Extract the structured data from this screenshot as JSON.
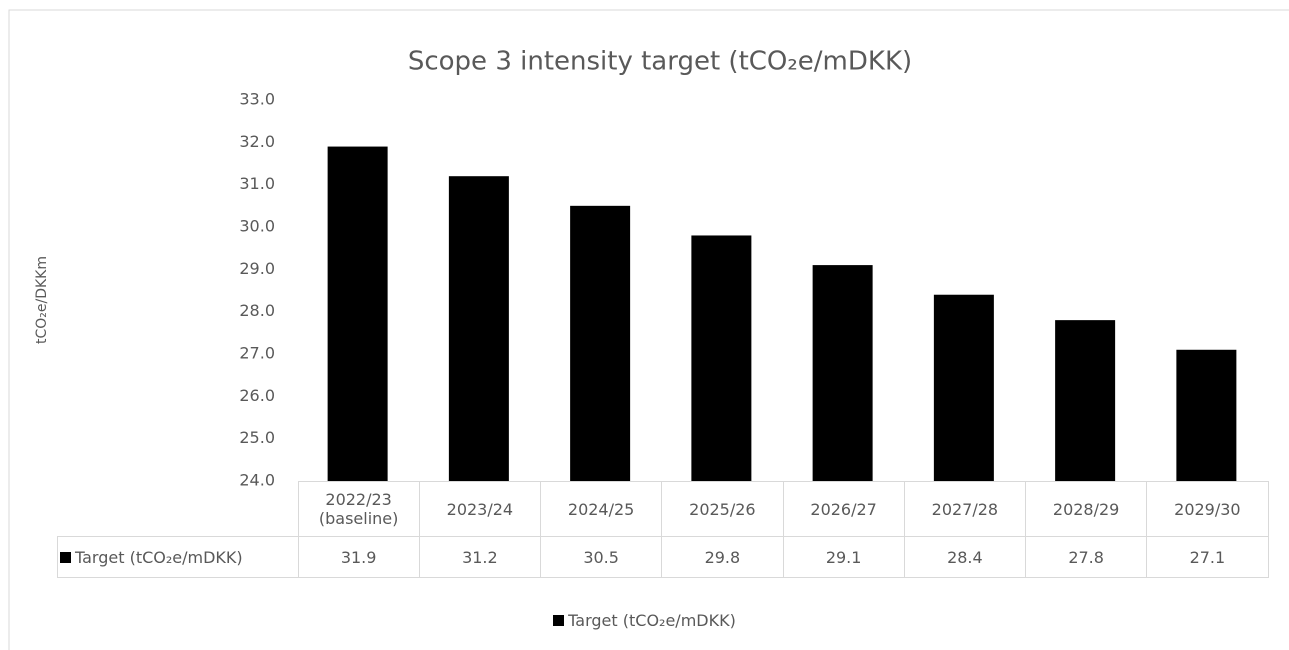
{
  "chart_data": {
    "type": "bar",
    "title": "Scope 3 intensity target (tCO₂e/mDKK)",
    "y_axis_label": "tCO₂e/DKKm",
    "categories": [
      "2022/23 (baseline)",
      "2023/24",
      "2024/25",
      "2025/26",
      "2026/27",
      "2027/28",
      "2028/29",
      "2029/30"
    ],
    "series": [
      {
        "name": "Target (tCO₂e/mDKK)",
        "color": "#000000",
        "values": [
          31.9,
          31.2,
          30.5,
          29.8,
          29.1,
          28.4,
          27.8,
          27.1
        ]
      }
    ],
    "ylim": [
      24,
      33
    ],
    "yticks": [
      {
        "value": 24,
        "label": "24.0"
      },
      {
        "value": 25,
        "label": "25.0"
      },
      {
        "value": 26,
        "label": "26.0"
      },
      {
        "value": 27,
        "label": "27.0"
      },
      {
        "value": 28,
        "label": "28.0"
      },
      {
        "value": 29,
        "label": "29.0"
      },
      {
        "value": 30,
        "label": "30.0"
      },
      {
        "value": 31,
        "label": "31.0"
      },
      {
        "value": 32,
        "label": "32.0"
      },
      {
        "value": 33,
        "label": "33.0"
      }
    ],
    "grid": false,
    "legend": "bottom"
  }
}
